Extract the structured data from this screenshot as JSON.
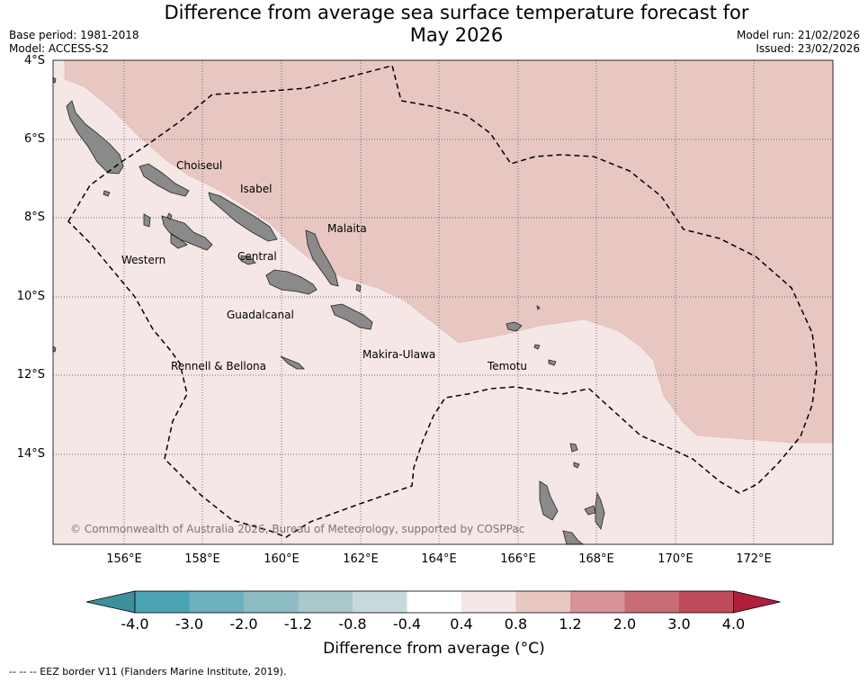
{
  "title_line1": "Difference from average sea surface temperature forecast for",
  "title_line2": "May 2026",
  "base_period": "Base period: 1981-2018",
  "model": "Model: ACCESS-S2",
  "model_run": "Model run: 21/02/2026",
  "issued": "Issued: 23/02/2026",
  "lat_labels": [
    "4°S",
    "6°S",
    "8°S",
    "10°S",
    "12°S",
    "14°S"
  ],
  "lon_labels": [
    "156°E",
    "158°E",
    "160°E",
    "162°E",
    "164°E",
    "166°E",
    "168°E",
    "170°E",
    "172°E"
  ],
  "regions": {
    "choiseul": "Choiseul",
    "isabel": "Isabel",
    "malaita": "Malaita",
    "western": "Western",
    "central": "Central",
    "guadalcanal": "Guadalcanal",
    "makira": "Makira-Ulawa",
    "rennell": "Rennell & Bellona",
    "temotu": "Temotu"
  },
  "credit": "© Commonwealth of Australia 2026, Bureau of Meteorology, supported by COSPPac",
  "colorbar": {
    "ticks": [
      "-4.0",
      "-3.0",
      "-2.0",
      "-1.2",
      "-0.8",
      "-0.4",
      "0.4",
      "0.8",
      "1.2",
      "2.0",
      "3.0",
      "4.0"
    ],
    "colors": [
      "#3d8f9b",
      "#4aa3b3",
      "#6cb0bf",
      "#8dbcc5",
      "#a9c8cc",
      "#c7d9dc",
      "#ffffff",
      "#f5e7e6",
      "#e8c7c2",
      "#d8939a",
      "#c86c76",
      "#bf4a5a",
      "#b01e3c"
    ],
    "label": "Difference from average (°C)"
  },
  "map_colors": {
    "ocean_low": "#f5e7e6",
    "ocean_high": "#e8c7c2",
    "land": "#8a8a8a"
  },
  "footer": "--  --  -- EEZ border V11 (Flanders Marine Institute, 2019)."
}
